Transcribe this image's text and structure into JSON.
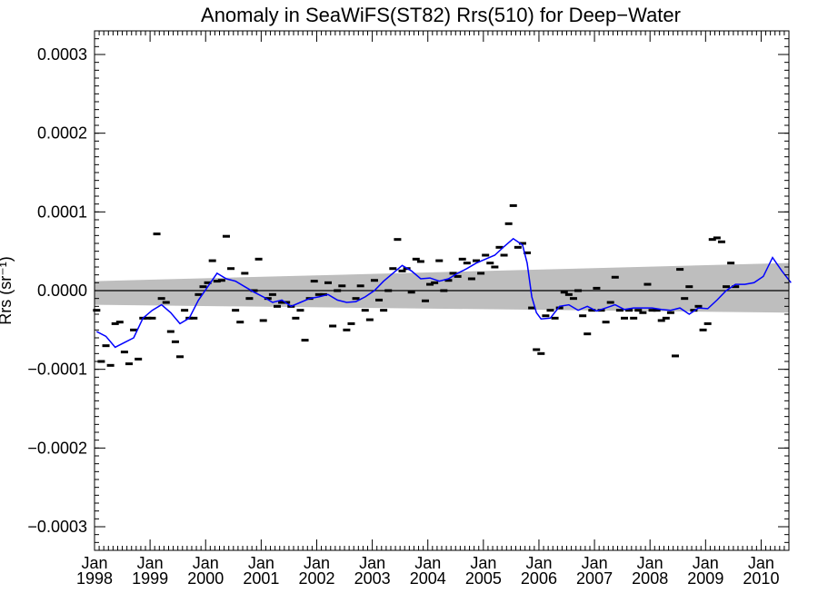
{
  "chart_data": {
    "type": "scatter",
    "title": "Anomaly in SeaWiFS(ST82) Rrs(510) for Deep−Water",
    "ylabel": "Rrs (sr⁻¹)",
    "xlabel": "",
    "xlim": [
      "1998-01-01",
      "2010-07-01"
    ],
    "ylim": [
      -0.00033,
      0.00033
    ],
    "grid": false,
    "x_ticks": [
      {
        "date": "1998-01-01",
        "month": "Jan",
        "year": "1998"
      },
      {
        "date": "1999-01-01",
        "month": "Jan",
        "year": "1999"
      },
      {
        "date": "2000-01-01",
        "month": "Jan",
        "year": "2000"
      },
      {
        "date": "2001-01-01",
        "month": "Jan",
        "year": "2001"
      },
      {
        "date": "2002-01-01",
        "month": "Jan",
        "year": "2002"
      },
      {
        "date": "2003-01-01",
        "month": "Jan",
        "year": "2003"
      },
      {
        "date": "2004-01-01",
        "month": "Jan",
        "year": "2004"
      },
      {
        "date": "2005-01-01",
        "month": "Jan",
        "year": "2005"
      },
      {
        "date": "2006-01-01",
        "month": "Jan",
        "year": "2006"
      },
      {
        "date": "2007-01-01",
        "month": "Jan",
        "year": "2007"
      },
      {
        "date": "2008-01-01",
        "month": "Jan",
        "year": "2008"
      },
      {
        "date": "2009-01-01",
        "month": "Jan",
        "year": "2009"
      },
      {
        "date": "2010-01-01",
        "month": "Jan",
        "year": "2010"
      }
    ],
    "y_ticks": [
      {
        "value": 0.0003,
        "label": "0.0003"
      },
      {
        "value": 0.0002,
        "label": "0.0002"
      },
      {
        "value": 0.0001,
        "label": "0.0001"
      },
      {
        "value": 0.0,
        "label": "0.0000"
      },
      {
        "value": -0.0001,
        "label": "−0.0001"
      },
      {
        "value": -0.0002,
        "label": "−0.0002"
      },
      {
        "value": -0.0003,
        "label": "−0.0003"
      }
    ],
    "series": [
      {
        "kind": "monthly_anomaly_markers",
        "color": "#000000",
        "points": [
          {
            "x": "1998-01",
            "y": -2.5e-05
          },
          {
            "x": "1998-02",
            "y": -9e-05
          },
          {
            "x": "1998-03",
            "y": -7e-05
          },
          {
            "x": "1998-04",
            "y": -9.5e-05
          },
          {
            "x": "1998-05",
            "y": -4.2e-05
          },
          {
            "x": "1998-06",
            "y": -4e-05
          },
          {
            "x": "1998-07",
            "y": -7.8e-05
          },
          {
            "x": "1998-08",
            "y": -9.3e-05
          },
          {
            "x": "1998-09",
            "y": -5e-05
          },
          {
            "x": "1998-10",
            "y": -8.7e-05
          },
          {
            "x": "1998-11",
            "y": -3.5e-05
          },
          {
            "x": "1998-12",
            "y": -3.5e-05
          },
          {
            "x": "1999-01",
            "y": -3.5e-05
          },
          {
            "x": "1999-02",
            "y": 7.2e-05
          },
          {
            "x": "1999-03",
            "y": -1e-05
          },
          {
            "x": "1999-04",
            "y": -1.5e-05
          },
          {
            "x": "1999-05",
            "y": -5.2e-05
          },
          {
            "x": "1999-06",
            "y": -6.5e-05
          },
          {
            "x": "1999-07",
            "y": -8.4e-05
          },
          {
            "x": "1999-08",
            "y": -2.5e-05
          },
          {
            "x": "1999-09",
            "y": -3.5e-05
          },
          {
            "x": "1999-10",
            "y": -3.5e-05
          },
          {
            "x": "1999-11",
            "y": -5e-06
          },
          {
            "x": "1999-12",
            "y": 5e-06
          },
          {
            "x": "2000-01",
            "y": 1e-05
          },
          {
            "x": "2000-02",
            "y": 3.8e-05
          },
          {
            "x": "2000-03",
            "y": 1.2e-05
          },
          {
            "x": "2000-04",
            "y": 1.3e-05
          },
          {
            "x": "2000-05",
            "y": 6.9e-05
          },
          {
            "x": "2000-06",
            "y": 2.8e-05
          },
          {
            "x": "2000-07",
            "y": -2.5e-05
          },
          {
            "x": "2000-08",
            "y": -4e-05
          },
          {
            "x": "2000-09",
            "y": 2.2e-05
          },
          {
            "x": "2000-10",
            "y": -1e-05
          },
          {
            "x": "2000-11",
            "y": 0.0
          },
          {
            "x": "2000-12",
            "y": 4e-05
          },
          {
            "x": "2001-01",
            "y": -3.8e-05
          },
          {
            "x": "2001-02",
            "y": -1e-05
          },
          {
            "x": "2001-03",
            "y": -5e-06
          },
          {
            "x": "2001-04",
            "y": -2e-05
          },
          {
            "x": "2001-05",
            "y": -1.5e-05
          },
          {
            "x": "2001-06",
            "y": -1.5e-05
          },
          {
            "x": "2001-07",
            "y": -2e-05
          },
          {
            "x": "2001-08",
            "y": -3.5e-05
          },
          {
            "x": "2001-09",
            "y": -2.5e-05
          },
          {
            "x": "2001-10",
            "y": -6.3e-05
          },
          {
            "x": "2001-11",
            "y": -1e-05
          },
          {
            "x": "2001-12",
            "y": 1.2e-05
          },
          {
            "x": "2002-01",
            "y": -5e-06
          },
          {
            "x": "2002-02",
            "y": -5e-06
          },
          {
            "x": "2002-03",
            "y": 1e-05
          },
          {
            "x": "2002-04",
            "y": -4.5e-05
          },
          {
            "x": "2002-05",
            "y": 0.0
          },
          {
            "x": "2002-06",
            "y": 6e-06
          },
          {
            "x": "2002-07",
            "y": -5e-05
          },
          {
            "x": "2002-08",
            "y": -4.2e-05
          },
          {
            "x": "2002-09",
            "y": -1e-05
          },
          {
            "x": "2002-10",
            "y": 6e-06
          },
          {
            "x": "2002-11",
            "y": -2.5e-05
          },
          {
            "x": "2002-12",
            "y": -3.7e-05
          },
          {
            "x": "2003-01",
            "y": 1.3e-05
          },
          {
            "x": "2003-02",
            "y": -1.2e-05
          },
          {
            "x": "2003-03",
            "y": -2.5e-05
          },
          {
            "x": "2003-04",
            "y": 0.0
          },
          {
            "x": "2003-05",
            "y": 2.8e-05
          },
          {
            "x": "2003-06",
            "y": 6.5e-05
          },
          {
            "x": "2003-07",
            "y": 2.5e-05
          },
          {
            "x": "2003-08",
            "y": 2.8e-05
          },
          {
            "x": "2003-09",
            "y": -2e-06
          },
          {
            "x": "2003-10",
            "y": 4e-05
          },
          {
            "x": "2003-11",
            "y": 3.7e-05
          },
          {
            "x": "2003-12",
            "y": -1.3e-05
          },
          {
            "x": "2004-01",
            "y": 8e-06
          },
          {
            "x": "2004-02",
            "y": 1e-05
          },
          {
            "x": "2004-03",
            "y": 3.8e-05
          },
          {
            "x": "2004-04",
            "y": 0.0
          },
          {
            "x": "2004-05",
            "y": 1.3e-05
          },
          {
            "x": "2004-06",
            "y": 2.2e-05
          },
          {
            "x": "2004-07",
            "y": 1.8e-05
          },
          {
            "x": "2004-08",
            "y": 4e-05
          },
          {
            "x": "2004-09",
            "y": 3.5e-05
          },
          {
            "x": "2004-10",
            "y": 1.5e-05
          },
          {
            "x": "2004-11",
            "y": 3.8e-05
          },
          {
            "x": "2004-12",
            "y": 2.2e-05
          },
          {
            "x": "2005-01",
            "y": 4.5e-05
          },
          {
            "x": "2005-02",
            "y": 3.5e-05
          },
          {
            "x": "2005-03",
            "y": 3e-05
          },
          {
            "x": "2005-04",
            "y": 5.5e-05
          },
          {
            "x": "2005-05",
            "y": 4.5e-05
          },
          {
            "x": "2005-06",
            "y": 8.5e-05
          },
          {
            "x": "2005-07",
            "y": 0.000108
          },
          {
            "x": "2005-08",
            "y": 5.5e-05
          },
          {
            "x": "2005-09",
            "y": 6e-05
          },
          {
            "x": "2005-10",
            "y": 4.8e-05
          },
          {
            "x": "2005-11",
            "y": -2.2e-05
          },
          {
            "x": "2005-12",
            "y": -7.5e-05
          },
          {
            "x": "2006-01",
            "y": -8e-05
          },
          {
            "x": "2006-02",
            "y": -3.2e-05
          },
          {
            "x": "2006-03",
            "y": -2.5e-05
          },
          {
            "x": "2006-04",
            "y": -3.5e-05
          },
          {
            "x": "2006-05",
            "y": -2.2e-05
          },
          {
            "x": "2006-06",
            "y": -2e-06
          },
          {
            "x": "2006-07",
            "y": -5e-06
          },
          {
            "x": "2006-08",
            "y": -1e-05
          },
          {
            "x": "2006-09",
            "y": 0.0
          },
          {
            "x": "2006-10",
            "y": -3.2e-05
          },
          {
            "x": "2006-11",
            "y": -5.5e-05
          },
          {
            "x": "2006-12",
            "y": -2.5e-05
          },
          {
            "x": "2007-01",
            "y": 3e-06
          },
          {
            "x": "2007-02",
            "y": -2.5e-05
          },
          {
            "x": "2007-03",
            "y": -4e-05
          },
          {
            "x": "2007-04",
            "y": -1.5e-05
          },
          {
            "x": "2007-05",
            "y": 1.7e-05
          },
          {
            "x": "2007-06",
            "y": -2.5e-05
          },
          {
            "x": "2007-07",
            "y": -3.5e-05
          },
          {
            "x": "2007-08",
            "y": -2.5e-05
          },
          {
            "x": "2007-09",
            "y": -3.5e-05
          },
          {
            "x": "2007-10",
            "y": -2.5e-05
          },
          {
            "x": "2007-11",
            "y": -2.8e-05
          },
          {
            "x": "2007-12",
            "y": 8e-06
          },
          {
            "x": "2008-01",
            "y": -2.5e-05
          },
          {
            "x": "2008-02",
            "y": -2.5e-05
          },
          {
            "x": "2008-03",
            "y": -3.8e-05
          },
          {
            "x": "2008-04",
            "y": -3.5e-05
          },
          {
            "x": "2008-05",
            "y": -2.8e-05
          },
          {
            "x": "2008-06",
            "y": -8.3e-05
          },
          {
            "x": "2008-07",
            "y": 2.7e-05
          },
          {
            "x": "2008-08",
            "y": -1e-05
          },
          {
            "x": "2008-09",
            "y": 5e-06
          },
          {
            "x": "2008-10",
            "y": -2.5e-05
          },
          {
            "x": "2008-11",
            "y": -2e-05
          },
          {
            "x": "2008-12",
            "y": -5e-05
          },
          {
            "x": "2009-01",
            "y": -4.2e-05
          },
          {
            "x": "2009-02",
            "y": 6.5e-05
          },
          {
            "x": "2009-03",
            "y": 6.7e-05
          },
          {
            "x": "2009-04",
            "y": 6.2e-05
          },
          {
            "x": "2009-05",
            "y": 5e-06
          },
          {
            "x": "2009-06",
            "y": 3.5e-05
          },
          {
            "x": "2009-07",
            "y": 5e-06
          }
        ]
      },
      {
        "kind": "running_mean_line",
        "color": "#0000ff",
        "points": [
          {
            "x": "1998-01",
            "y": -5.2e-05
          },
          {
            "x": "1998-03",
            "y": -5.8e-05
          },
          {
            "x": "1998-05",
            "y": -7.2e-05
          },
          {
            "x": "1998-07",
            "y": -6.6e-05
          },
          {
            "x": "1998-09",
            "y": -6e-05
          },
          {
            "x": "1998-11",
            "y": -3.5e-05
          },
          {
            "x": "1999-01",
            "y": -2.5e-05
          },
          {
            "x": "1999-03",
            "y": -1.8e-05
          },
          {
            "x": "1999-05",
            "y": -2.8e-05
          },
          {
            "x": "1999-07",
            "y": -4.2e-05
          },
          {
            "x": "1999-09",
            "y": -3.5e-05
          },
          {
            "x": "1999-11",
            "y": -1.2e-05
          },
          {
            "x": "2000-01",
            "y": 5e-06
          },
          {
            "x": "2000-03",
            "y": 2.2e-05
          },
          {
            "x": "2000-05",
            "y": 1.5e-05
          },
          {
            "x": "2000-07",
            "y": 1.2e-05
          },
          {
            "x": "2000-09",
            "y": 5e-06
          },
          {
            "x": "2000-11",
            "y": -2e-06
          },
          {
            "x": "2001-01",
            "y": -8e-06
          },
          {
            "x": "2001-03",
            "y": -1.5e-05
          },
          {
            "x": "2001-05",
            "y": -1.2e-05
          },
          {
            "x": "2001-07",
            "y": -2e-05
          },
          {
            "x": "2001-09",
            "y": -1.5e-05
          },
          {
            "x": "2001-11",
            "y": -1e-05
          },
          {
            "x": "2002-01",
            "y": -8e-06
          },
          {
            "x": "2002-03",
            "y": -5e-06
          },
          {
            "x": "2002-05",
            "y": -1.2e-05
          },
          {
            "x": "2002-07",
            "y": -1.5e-05
          },
          {
            "x": "2002-09",
            "y": -1.4e-05
          },
          {
            "x": "2002-11",
            "y": -8e-06
          },
          {
            "x": "2003-01",
            "y": 0.0
          },
          {
            "x": "2003-03",
            "y": 1.2e-05
          },
          {
            "x": "2003-05",
            "y": 2.2e-05
          },
          {
            "x": "2003-07",
            "y": 3.2e-05
          },
          {
            "x": "2003-09",
            "y": 2.5e-05
          },
          {
            "x": "2003-11",
            "y": 1.5e-05
          },
          {
            "x": "2004-01",
            "y": 1.6e-05
          },
          {
            "x": "2004-03",
            "y": 1.2e-05
          },
          {
            "x": "2004-05",
            "y": 1.5e-05
          },
          {
            "x": "2004-07",
            "y": 2.2e-05
          },
          {
            "x": "2004-09",
            "y": 2.8e-05
          },
          {
            "x": "2004-11",
            "y": 3.5e-05
          },
          {
            "x": "2005-01",
            "y": 4e-05
          },
          {
            "x": "2005-03",
            "y": 4.5e-05
          },
          {
            "x": "2005-05",
            "y": 5.6e-05
          },
          {
            "x": "2005-07",
            "y": 6.6e-05
          },
          {
            "x": "2005-09",
            "y": 5.8e-05
          },
          {
            "x": "2005-10",
            "y": 3.5e-05
          },
          {
            "x": "2005-11",
            "y": -8e-06
          },
          {
            "x": "2005-12",
            "y": -2.8e-05
          },
          {
            "x": "2006-01",
            "y": -3.6e-05
          },
          {
            "x": "2006-03",
            "y": -3.5e-05
          },
          {
            "x": "2006-05",
            "y": -2e-05
          },
          {
            "x": "2006-07",
            "y": -1.8e-05
          },
          {
            "x": "2006-09",
            "y": -2.5e-05
          },
          {
            "x": "2006-11",
            "y": -2e-05
          },
          {
            "x": "2007-01",
            "y": -2.6e-05
          },
          {
            "x": "2007-03",
            "y": -2.2e-05
          },
          {
            "x": "2007-05",
            "y": -1.8e-05
          },
          {
            "x": "2007-07",
            "y": -2.4e-05
          },
          {
            "x": "2007-09",
            "y": -2.2e-05
          },
          {
            "x": "2007-11",
            "y": -2.2e-05
          },
          {
            "x": "2008-01",
            "y": -2.2e-05
          },
          {
            "x": "2008-03",
            "y": -2.4e-05
          },
          {
            "x": "2008-05",
            "y": -2.5e-05
          },
          {
            "x": "2008-07",
            "y": -2.2e-05
          },
          {
            "x": "2008-09",
            "y": -3e-05
          },
          {
            "x": "2008-11",
            "y": -2.2e-05
          },
          {
            "x": "2009-01",
            "y": -2.3e-05
          },
          {
            "x": "2009-03",
            "y": -1.2e-05
          },
          {
            "x": "2009-05",
            "y": 0.0
          },
          {
            "x": "2009-07",
            "y": 8e-06
          },
          {
            "x": "2009-09",
            "y": 8e-06
          },
          {
            "x": "2009-11",
            "y": 1e-05
          },
          {
            "x": "2010-01",
            "y": 1.8e-05
          },
          {
            "x": "2010-03",
            "y": 4.2e-05
          },
          {
            "x": "2010-05",
            "y": 2.5e-05
          },
          {
            "x": "2010-07",
            "y": 1e-05
          }
        ]
      },
      {
        "kind": "trend_confidence_band",
        "color": "#bebebe",
        "start": {
          "x": "1998-01-01",
          "lower": -1.8e-05,
          "upper": 1.2e-05
        },
        "end": {
          "x": "2010-07-01",
          "lower": -2.8e-05,
          "upper": 3.5e-05
        }
      },
      {
        "kind": "zero_line",
        "color": "#000000",
        "y": 0.0
      }
    ]
  }
}
